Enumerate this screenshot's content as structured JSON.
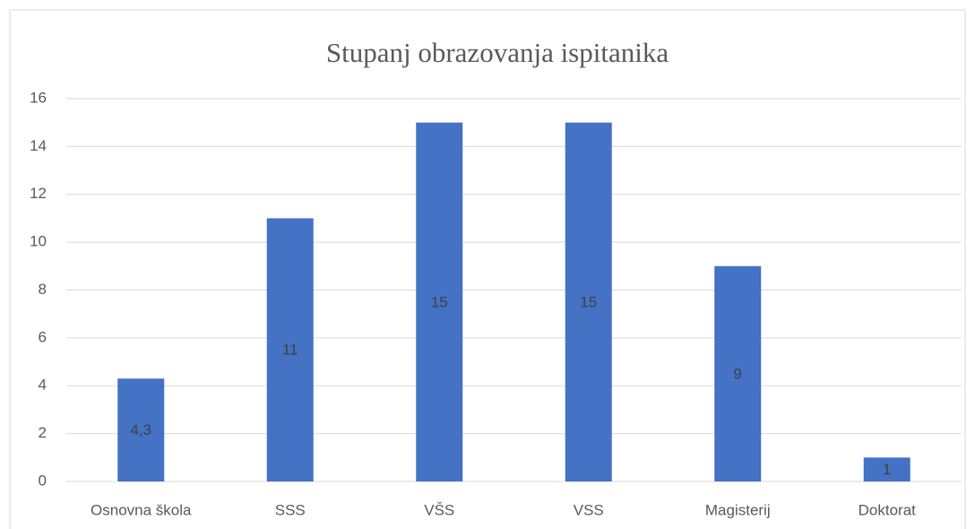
{
  "chart_data": {
    "type": "bar",
    "title": "Stupanj obrazovanja ispitanika",
    "categories": [
      "Osnovna škola",
      "SSS",
      "VŠS",
      "VSS",
      "Magisterij",
      "Doktorat"
    ],
    "values": [
      4.3,
      11,
      15,
      15,
      9,
      1
    ],
    "value_labels": [
      "4,3",
      "11",
      "15",
      "15",
      "9",
      "1"
    ],
    "color": "#4472c4",
    "ylim": [
      0,
      16
    ],
    "yticks": [
      0,
      2,
      4,
      6,
      8,
      10,
      12,
      14,
      16
    ],
    "grid": true
  }
}
